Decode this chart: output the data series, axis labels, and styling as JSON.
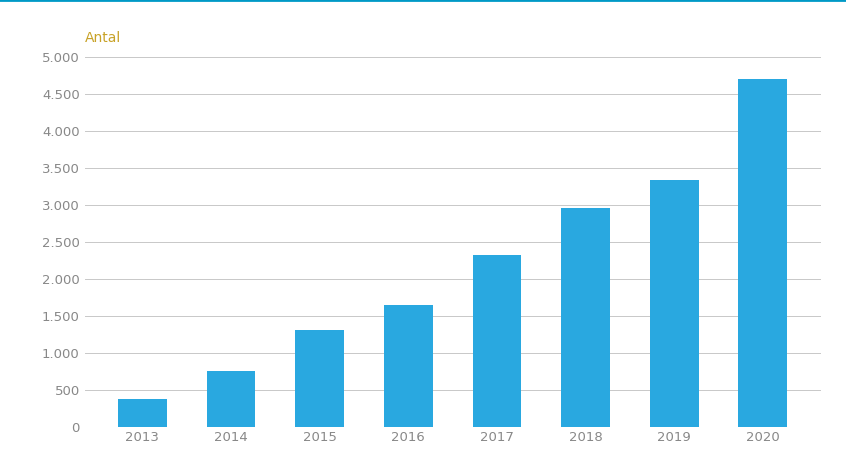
{
  "categories": [
    "2013",
    "2014",
    "2015",
    "2016",
    "2017",
    "2018",
    "2019",
    "2020"
  ],
  "values": [
    370,
    750,
    1300,
    1650,
    2320,
    2960,
    3340,
    4700
  ],
  "bar_color": "#29a8e0",
  "ylabel": "Antal",
  "ylabel_color": "#c8a227",
  "ylim": [
    0,
    5000
  ],
  "yticks": [
    0,
    500,
    1000,
    1500,
    2000,
    2500,
    3000,
    3500,
    4000,
    4500,
    5000
  ],
  "ytick_labels": [
    "0",
    "500",
    "1.000",
    "1.500",
    "2.000",
    "2.500",
    "3.000",
    "3.500",
    "4.000",
    "4.500",
    "5.000"
  ],
  "background_color": "#ffffff",
  "grid_color": "#c8c8c8",
  "top_border_color": "#0099c6",
  "bar_width": 0.55,
  "tick_fontsize": 9.5,
  "ylabel_fontsize": 10
}
